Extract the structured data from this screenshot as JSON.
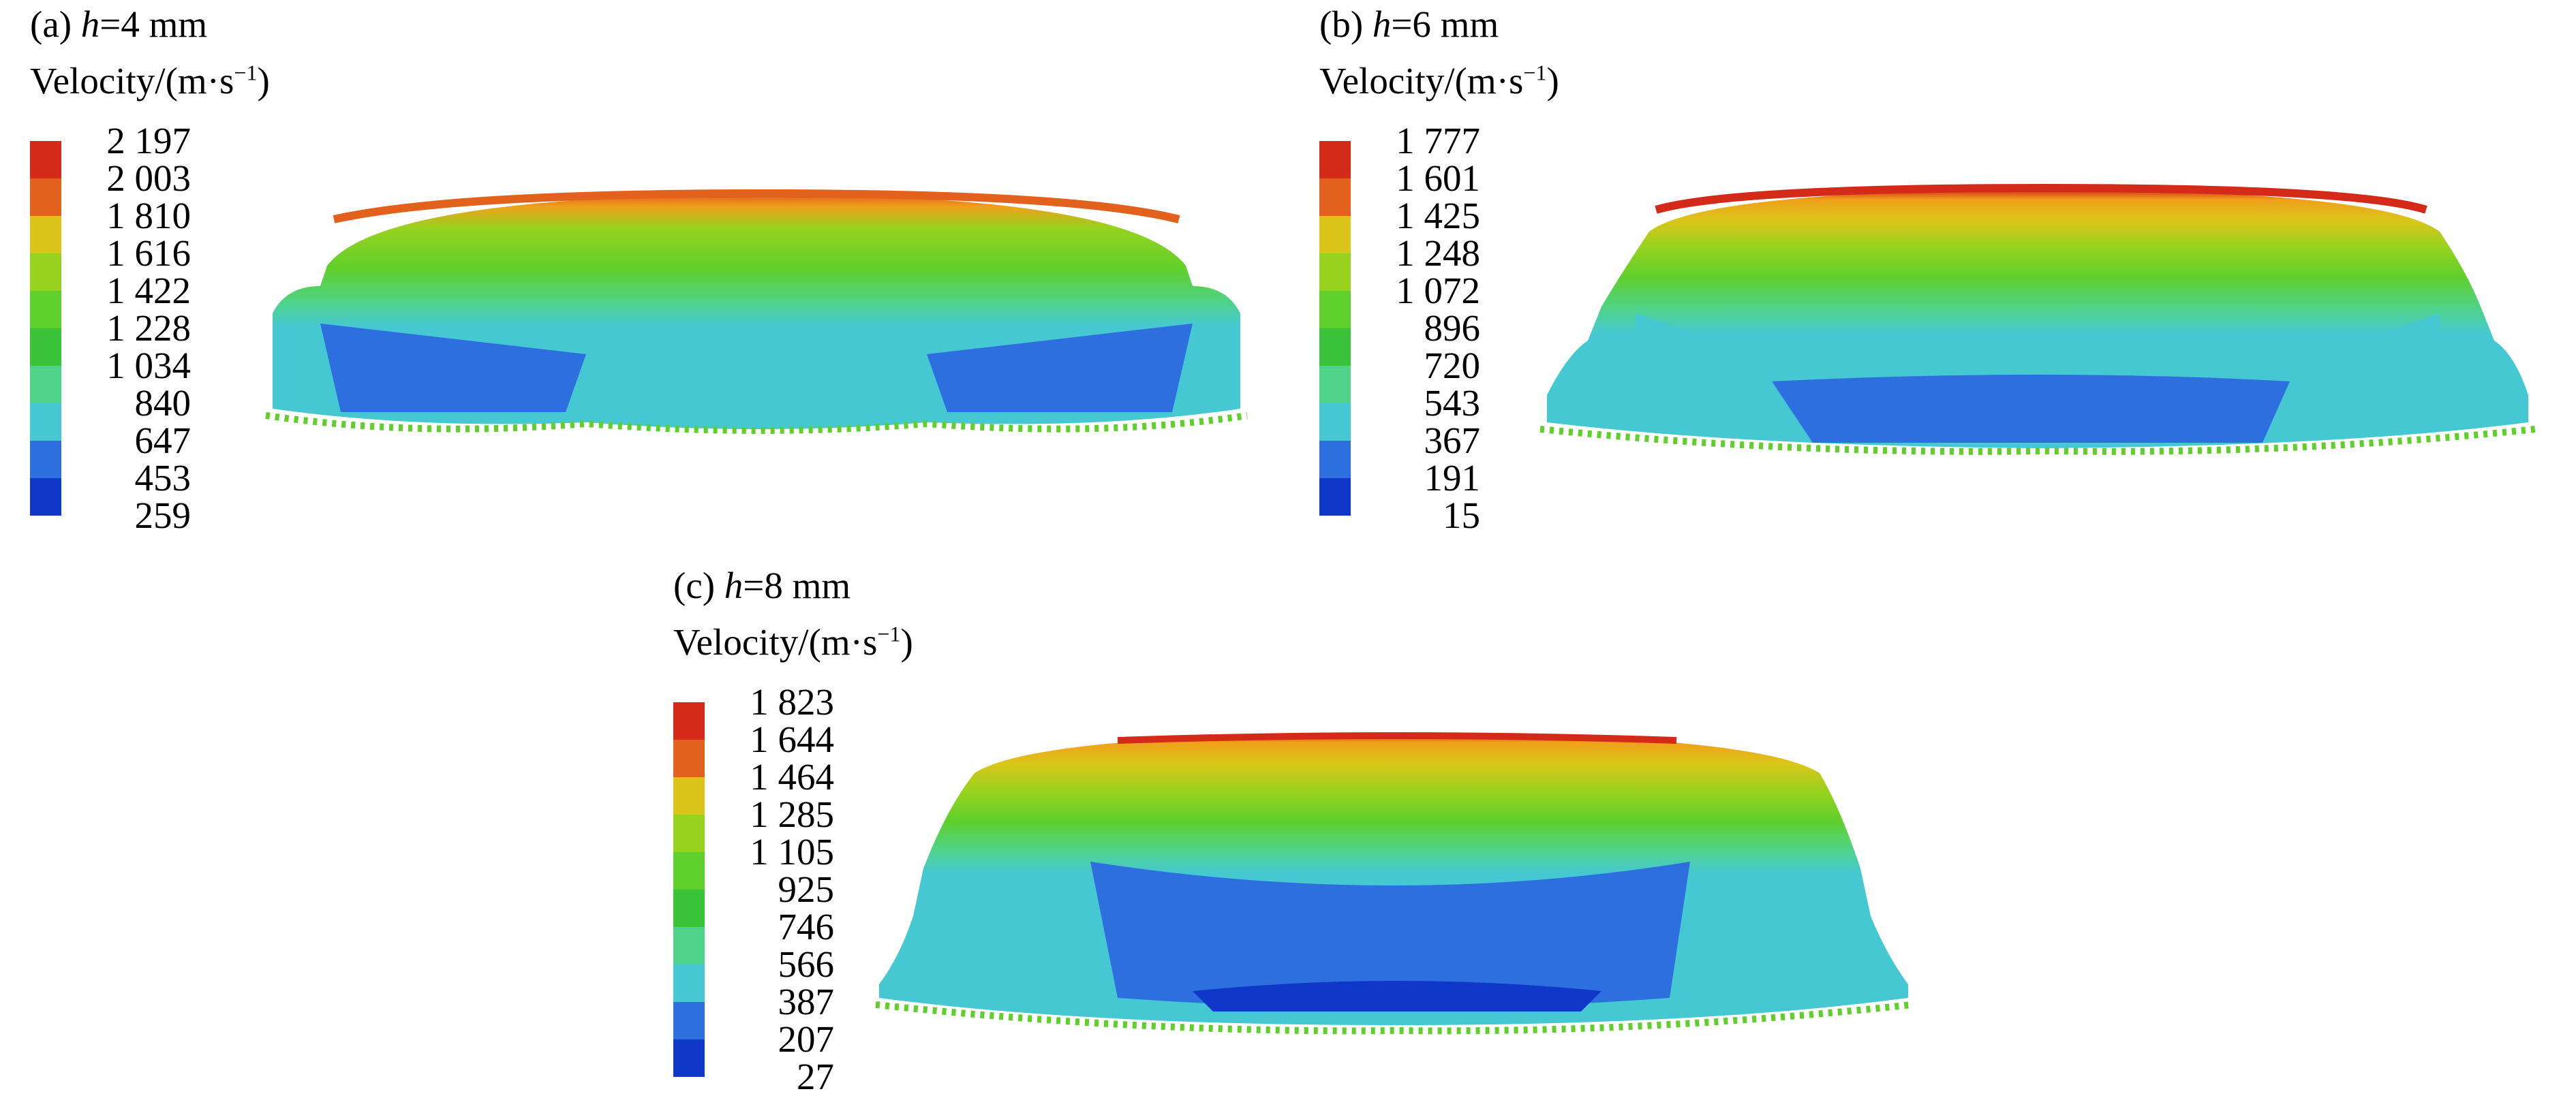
{
  "colors": [
    "#1038c8",
    "#2e6fe0",
    "#46c8d2",
    "#4fd38a",
    "#39c23a",
    "#5fcf2c",
    "#98d21f",
    "#dcc51a",
    "#f0a01a",
    "#e2621d",
    "#d42a1a"
  ],
  "panels": [
    {
      "id": "a",
      "label_prefix": "(a)",
      "h_var": "h",
      "h_value": "=4 mm",
      "unit_label": "Velocity/(m·s",
      "unit_sup": "−1",
      "unit_close": ")",
      "ticks": [
        "2 197",
        "2 003",
        "1 810",
        "1 616",
        "1 422",
        "1 228",
        "1 034",
        "840",
        "647",
        "453",
        "259"
      ]
    },
    {
      "id": "b",
      "label_prefix": "(b)",
      "h_var": "h",
      "h_value": "=6 mm",
      "unit_label": "Velocity/(m·s",
      "unit_sup": "−1",
      "unit_close": ")",
      "ticks": [
        "1 777",
        "1 601",
        "1 425",
        "1 248",
        "1 072",
        "896",
        "720",
        "543",
        "367",
        "191",
        "15"
      ]
    },
    {
      "id": "c",
      "label_prefix": "(c)",
      "h_var": "h",
      "h_value": "=8 mm",
      "unit_label": "Velocity/(m·s",
      "unit_sup": "−1",
      "unit_close": ")",
      "ticks": [
        "1 823",
        "1 644",
        "1 464",
        "1 285",
        "1 105",
        "925",
        "746",
        "566",
        "387",
        "207",
        "27"
      ]
    }
  ]
}
